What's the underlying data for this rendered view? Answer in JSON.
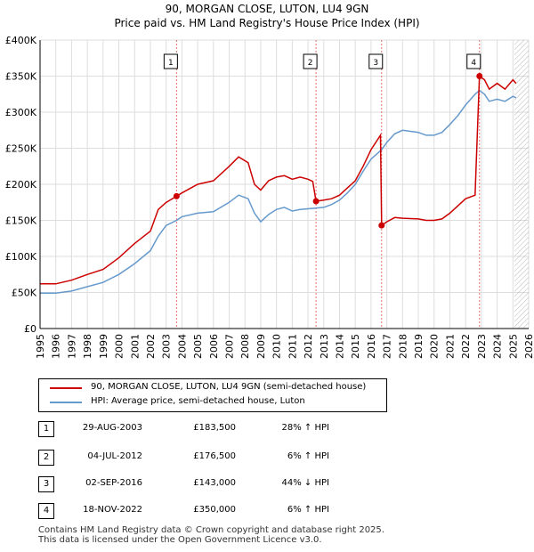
{
  "title_line1": "90, MORGAN CLOSE, LUTON, LU4 9GN",
  "title_line2": "Price paid vs. HM Land Registry's House Price Index (HPI)",
  "colors": {
    "price": "#cc0000",
    "hpi": "#6699cc",
    "marker_line": "#e07070",
    "grid": "#dddddd",
    "hatch": "#888888"
  },
  "chart_data": {
    "type": "line",
    "title": "Price paid vs. HM Land Registry's House Price Index (HPI)",
    "xlim": [
      1995,
      2026
    ],
    "ylim": [
      0,
      400000
    ],
    "x_ticks": [
      1995,
      1996,
      1997,
      1998,
      1999,
      2000,
      2001,
      2002,
      2003,
      2004,
      2005,
      2006,
      2007,
      2008,
      2009,
      2010,
      2011,
      2012,
      2013,
      2014,
      2015,
      2016,
      2017,
      2018,
      2019,
      2020,
      2021,
      2022,
      2023,
      2024,
      2025,
      2026
    ],
    "y_ticks": [
      {
        "value": 0,
        "label": "£0"
      },
      {
        "value": 50000,
        "label": "£50K"
      },
      {
        "value": 100000,
        "label": "£100K"
      },
      {
        "value": 150000,
        "label": "£150K"
      },
      {
        "value": 200000,
        "label": "£200K"
      },
      {
        "value": 250000,
        "label": "£250K"
      },
      {
        "value": 300000,
        "label": "£300K"
      },
      {
        "value": 350000,
        "label": "£350K"
      },
      {
        "value": 400000,
        "label": "£400K"
      }
    ],
    "hatch_from": 2025.1,
    "series": [
      {
        "name": "90, MORGAN CLOSE, LUTON, LU4 9GN (semi-detached house)",
        "points": [
          [
            1995,
            62000
          ],
          [
            1996,
            62000
          ],
          [
            1997,
            67000
          ],
          [
            1998,
            75000
          ],
          [
            1999,
            82000
          ],
          [
            2000,
            98000
          ],
          [
            2001,
            118000
          ],
          [
            2002,
            135000
          ],
          [
            2002.5,
            165000
          ],
          [
            2003,
            175000
          ],
          [
            2003.66,
            183500
          ],
          [
            2004,
            188000
          ],
          [
            2005,
            200000
          ],
          [
            2006,
            205000
          ],
          [
            2007,
            225000
          ],
          [
            2007.6,
            238000
          ],
          [
            2008.2,
            230000
          ],
          [
            2008.6,
            200000
          ],
          [
            2009,
            192000
          ],
          [
            2009.5,
            205000
          ],
          [
            2010,
            210000
          ],
          [
            2010.5,
            212000
          ],
          [
            2011,
            207000
          ],
          [
            2011.5,
            210000
          ],
          [
            2012,
            207000
          ],
          [
            2012.3,
            204000
          ],
          [
            2012.51,
            176500
          ],
          [
            2013,
            178000
          ],
          [
            2013.5,
            180000
          ],
          [
            2014,
            185000
          ],
          [
            2014.5,
            195000
          ],
          [
            2015,
            205000
          ],
          [
            2015.5,
            225000
          ],
          [
            2016,
            248000
          ],
          [
            2016.6,
            268000
          ],
          [
            2016.67,
            143000
          ],
          [
            2017,
            148000
          ],
          [
            2017.5,
            154000
          ],
          [
            2018,
            153000
          ],
          [
            2019,
            152000
          ],
          [
            2019.5,
            150000
          ],
          [
            2020,
            150000
          ],
          [
            2020.5,
            152000
          ],
          [
            2021,
            160000
          ],
          [
            2021.5,
            170000
          ],
          [
            2022,
            180000
          ],
          [
            2022.6,
            185000
          ],
          [
            2022.88,
            350000
          ],
          [
            2023.2,
            345000
          ],
          [
            2023.5,
            332000
          ],
          [
            2024,
            340000
          ],
          [
            2024.5,
            332000
          ],
          [
            2025,
            345000
          ],
          [
            2025.2,
            340000
          ]
        ]
      },
      {
        "name": "HPI: Average price, semi-detached house, Luton",
        "points": [
          [
            1995,
            49000
          ],
          [
            1996,
            49000
          ],
          [
            1997,
            52000
          ],
          [
            1998,
            58000
          ],
          [
            1999,
            64000
          ],
          [
            2000,
            75000
          ],
          [
            2001,
            90000
          ],
          [
            2002,
            108000
          ],
          [
            2002.5,
            128000
          ],
          [
            2003,
            143000
          ],
          [
            2003.66,
            150000
          ],
          [
            2004,
            155000
          ],
          [
            2005,
            160000
          ],
          [
            2006,
            162000
          ],
          [
            2007,
            175000
          ],
          [
            2007.6,
            185000
          ],
          [
            2008.2,
            180000
          ],
          [
            2008.6,
            160000
          ],
          [
            2009,
            148000
          ],
          [
            2009.5,
            158000
          ],
          [
            2010,
            165000
          ],
          [
            2010.5,
            168000
          ],
          [
            2011,
            163000
          ],
          [
            2011.5,
            165000
          ],
          [
            2012,
            166000
          ],
          [
            2012.5,
            167000
          ],
          [
            2013,
            168000
          ],
          [
            2013.5,
            172000
          ],
          [
            2014,
            178000
          ],
          [
            2014.5,
            188000
          ],
          [
            2015,
            200000
          ],
          [
            2015.5,
            218000
          ],
          [
            2016,
            235000
          ],
          [
            2016.67,
            248000
          ],
          [
            2017,
            258000
          ],
          [
            2017.5,
            270000
          ],
          [
            2018,
            275000
          ],
          [
            2019,
            272000
          ],
          [
            2019.5,
            268000
          ],
          [
            2020,
            268000
          ],
          [
            2020.5,
            272000
          ],
          [
            2021,
            283000
          ],
          [
            2021.5,
            295000
          ],
          [
            2022,
            310000
          ],
          [
            2022.6,
            325000
          ],
          [
            2022.88,
            330000
          ],
          [
            2023.2,
            325000
          ],
          [
            2023.5,
            315000
          ],
          [
            2024,
            318000
          ],
          [
            2024.5,
            315000
          ],
          [
            2025,
            322000
          ],
          [
            2025.2,
            320000
          ]
        ]
      }
    ],
    "sales": [
      {
        "num": "1",
        "x": 2003.66,
        "price": 183500
      },
      {
        "num": "2",
        "x": 2012.51,
        "price": 176500
      },
      {
        "num": "3",
        "x": 2016.67,
        "price": 143000
      },
      {
        "num": "4",
        "x": 2022.88,
        "price": 350000
      }
    ]
  },
  "legend": {
    "price_label": "90, MORGAN CLOSE, LUTON, LU4 9GN (semi-detached house)",
    "hpi_label": "HPI: Average price, semi-detached house, Luton"
  },
  "sales_table": [
    {
      "num": "1",
      "date": "29-AUG-2003",
      "price": "£183,500",
      "hpi": "28% ↑ HPI"
    },
    {
      "num": "2",
      "date": "04-JUL-2012",
      "price": "£176,500",
      "hpi": "6% ↑ HPI"
    },
    {
      "num": "3",
      "date": "02-SEP-2016",
      "price": "£143,000",
      "hpi": "44% ↓ HPI"
    },
    {
      "num": "4",
      "date": "18-NOV-2022",
      "price": "£350,000",
      "hpi": "6% ↑ HPI"
    }
  ],
  "footer_line1": "Contains HM Land Registry data © Crown copyright and database right 2025.",
  "footer_line2": "This data is licensed under the Open Government Licence v3.0."
}
